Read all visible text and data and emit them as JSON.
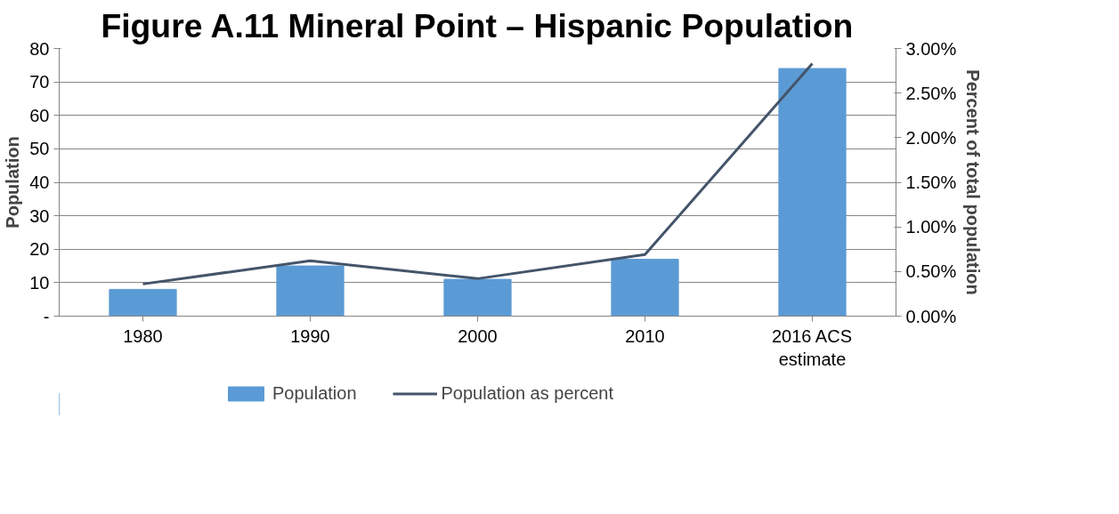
{
  "chart_data": {
    "type": "bar",
    "title": "Figure A.11 Mineral Point – Hispanic Population",
    "ylabel": "Population",
    "y2label": "Percent of total population",
    "categories": [
      "1980",
      "1990",
      "2000",
      "2010",
      "2016 ACS\nestimate"
    ],
    "series": [
      {
        "name": "Population",
        "color": "#5b9bd5",
        "values": [
          8,
          15,
          11,
          17,
          74
        ]
      },
      {
        "name": "Population as percent",
        "type": "line",
        "axis": "y2",
        "color": "#44546a",
        "values": [
          0.36,
          0.62,
          0.42,
          0.69,
          2.83
        ]
      }
    ],
    "ylim": [
      0,
      80
    ],
    "yticks": [
      {
        "value": 0,
        "label": "-"
      },
      10,
      20,
      30,
      40,
      50,
      60,
      70,
      80
    ],
    "y2lim": [
      0,
      3
    ],
    "y2ticks": [
      {
        "value": 0,
        "label": "0.00%"
      },
      {
        "value": 0.5,
        "label": "0.50%"
      },
      {
        "value": 1,
        "label": "1.00%"
      },
      {
        "value": 1.5,
        "label": "1.50%"
      },
      {
        "value": 2,
        "label": "2.00%"
      },
      {
        "value": 2.5,
        "label": "2.50%"
      },
      {
        "value": 3,
        "label": "3.00%"
      }
    ],
    "grid": "y",
    "legend": "bottom",
    "marker": "none",
    "line_style": "solid"
  }
}
